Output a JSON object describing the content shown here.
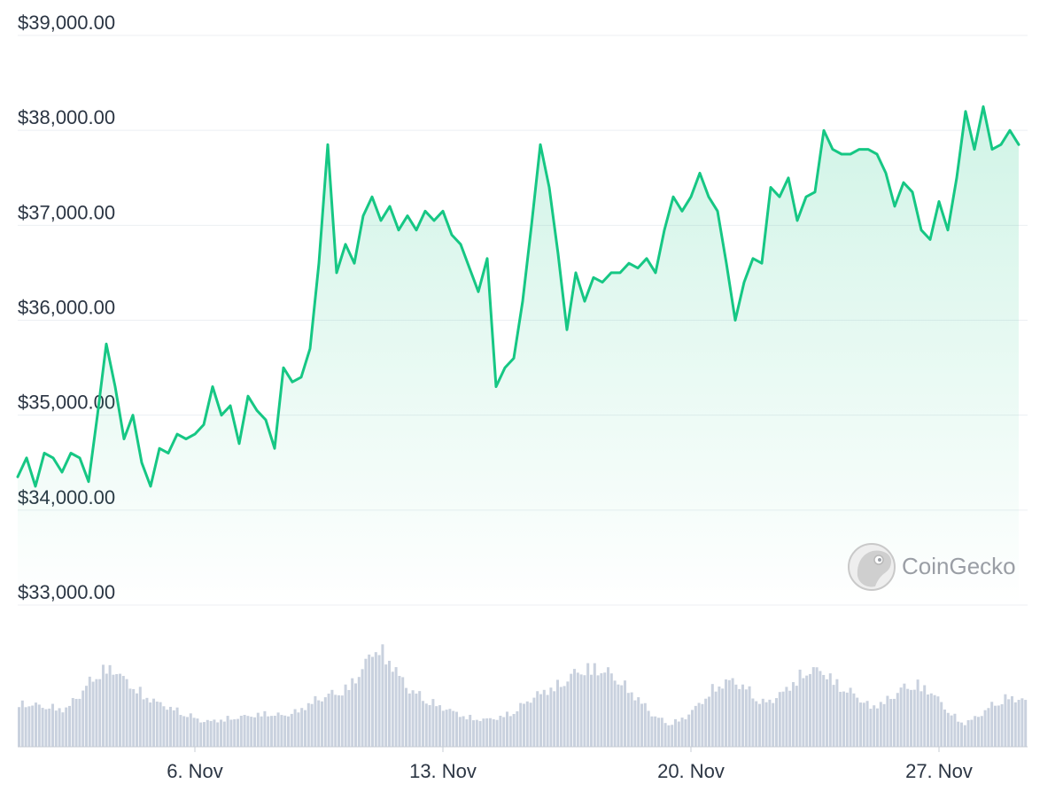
{
  "chart_data": {
    "type": "area",
    "title": "",
    "xlabel": "",
    "ylabel": "",
    "x_range": [
      "2023-11-01",
      "2023-11-29"
    ],
    "ylim": [
      33000,
      39000
    ],
    "y_ticks": [
      "$39,000.00",
      "$38,000.00",
      "$37,000.00",
      "$36,000.00",
      "$35,000.00",
      "$34,000.00",
      "$33,000.00"
    ],
    "y_tick_values": [
      39000,
      38000,
      37000,
      36000,
      35000,
      34000,
      33000
    ],
    "x_ticks": [
      "6. Nov",
      "13. Nov",
      "20. Nov",
      "27. Nov"
    ],
    "x_tick_dates": [
      "2023-11-06",
      "2023-11-13",
      "2023-11-20",
      "2023-11-27"
    ],
    "grid": true,
    "line_color": "#16c784",
    "fill_color": "#16c784",
    "volume_color": "#c9d1de",
    "price_series": {
      "name": "",
      "points": [
        [
          "2023-11-01T00:00",
          34350
        ],
        [
          "2023-11-01T06:00",
          34550
        ],
        [
          "2023-11-01T12:00",
          34250
        ],
        [
          "2023-11-01T18:00",
          34600
        ],
        [
          "2023-11-02T00:00",
          34550
        ],
        [
          "2023-11-02T06:00",
          34400
        ],
        [
          "2023-11-02T12:00",
          34600
        ],
        [
          "2023-11-02T18:00",
          34550
        ],
        [
          "2023-11-03T00:00",
          34300
        ],
        [
          "2023-11-03T06:00",
          35000
        ],
        [
          "2023-11-03T12:00",
          35750
        ],
        [
          "2023-11-03T18:00",
          35300
        ],
        [
          "2023-11-04T00:00",
          34750
        ],
        [
          "2023-11-04T06:00",
          35000
        ],
        [
          "2023-11-04T12:00",
          34500
        ],
        [
          "2023-11-04T18:00",
          34250
        ],
        [
          "2023-11-05T00:00",
          34650
        ],
        [
          "2023-11-05T06:00",
          34600
        ],
        [
          "2023-11-05T12:00",
          34800
        ],
        [
          "2023-11-05T18:00",
          34750
        ],
        [
          "2023-11-06T00:00",
          34800
        ],
        [
          "2023-11-06T06:00",
          34900
        ],
        [
          "2023-11-06T12:00",
          35300
        ],
        [
          "2023-11-06T18:00",
          35000
        ],
        [
          "2023-11-07T00:00",
          35100
        ],
        [
          "2023-11-07T06:00",
          34700
        ],
        [
          "2023-11-07T12:00",
          35200
        ],
        [
          "2023-11-07T18:00",
          35050
        ],
        [
          "2023-11-08T00:00",
          34950
        ],
        [
          "2023-11-08T06:00",
          34650
        ],
        [
          "2023-11-08T12:00",
          35500
        ],
        [
          "2023-11-08T18:00",
          35350
        ],
        [
          "2023-11-09T00:00",
          35400
        ],
        [
          "2023-11-09T06:00",
          35700
        ],
        [
          "2023-11-09T12:00",
          36600
        ],
        [
          "2023-11-09T18:00",
          37850
        ],
        [
          "2023-11-10T00:00",
          36500
        ],
        [
          "2023-11-10T06:00",
          36800
        ],
        [
          "2023-11-10T12:00",
          36600
        ],
        [
          "2023-11-10T18:00",
          37100
        ],
        [
          "2023-11-11T00:00",
          37300
        ],
        [
          "2023-11-11T06:00",
          37050
        ],
        [
          "2023-11-11T12:00",
          37200
        ],
        [
          "2023-11-11T18:00",
          36950
        ],
        [
          "2023-11-12T00:00",
          37100
        ],
        [
          "2023-11-12T06:00",
          36950
        ],
        [
          "2023-11-12T12:00",
          37150
        ],
        [
          "2023-11-12T18:00",
          37050
        ],
        [
          "2023-11-13T00:00",
          37150
        ],
        [
          "2023-11-13T06:00",
          36900
        ],
        [
          "2023-11-13T12:00",
          36800
        ],
        [
          "2023-11-13T18:00",
          36550
        ],
        [
          "2023-11-14T00:00",
          36300
        ],
        [
          "2023-11-14T06:00",
          36650
        ],
        [
          "2023-11-14T12:00",
          35300
        ],
        [
          "2023-11-14T18:00",
          35500
        ],
        [
          "2023-11-15T00:00",
          35600
        ],
        [
          "2023-11-15T06:00",
          36200
        ],
        [
          "2023-11-15T12:00",
          37000
        ],
        [
          "2023-11-15T18:00",
          37850
        ],
        [
          "2023-11-16T00:00",
          37400
        ],
        [
          "2023-11-16T06:00",
          36700
        ],
        [
          "2023-11-16T12:00",
          35900
        ],
        [
          "2023-11-16T18:00",
          36500
        ],
        [
          "2023-11-17T00:00",
          36200
        ],
        [
          "2023-11-17T06:00",
          36450
        ],
        [
          "2023-11-17T12:00",
          36400
        ],
        [
          "2023-11-17T18:00",
          36500
        ],
        [
          "2023-11-18T00:00",
          36500
        ],
        [
          "2023-11-18T06:00",
          36600
        ],
        [
          "2023-11-18T12:00",
          36550
        ],
        [
          "2023-11-18T18:00",
          36650
        ],
        [
          "2023-11-19T00:00",
          36500
        ],
        [
          "2023-11-19T06:00",
          36950
        ],
        [
          "2023-11-19T12:00",
          37300
        ],
        [
          "2023-11-19T18:00",
          37150
        ],
        [
          "2023-11-20T00:00",
          37300
        ],
        [
          "2023-11-20T06:00",
          37550
        ],
        [
          "2023-11-20T12:00",
          37300
        ],
        [
          "2023-11-20T18:00",
          37150
        ],
        [
          "2023-11-21T00:00",
          36600
        ],
        [
          "2023-11-21T06:00",
          36000
        ],
        [
          "2023-11-21T12:00",
          36400
        ],
        [
          "2023-11-21T18:00",
          36650
        ],
        [
          "2023-11-22T00:00",
          36600
        ],
        [
          "2023-11-22T06:00",
          37400
        ],
        [
          "2023-11-22T12:00",
          37300
        ],
        [
          "2023-11-22T18:00",
          37500
        ],
        [
          "2023-11-23T00:00",
          37050
        ],
        [
          "2023-11-23T06:00",
          37300
        ],
        [
          "2023-11-23T12:00",
          37350
        ],
        [
          "2023-11-23T18:00",
          38000
        ],
        [
          "2023-11-24T00:00",
          37800
        ],
        [
          "2023-11-24T06:00",
          37750
        ],
        [
          "2023-11-24T12:00",
          37750
        ],
        [
          "2023-11-24T18:00",
          37800
        ],
        [
          "2023-11-25T00:00",
          37800
        ],
        [
          "2023-11-25T06:00",
          37750
        ],
        [
          "2023-11-25T12:00",
          37550
        ],
        [
          "2023-11-25T18:00",
          37200
        ],
        [
          "2023-11-26T00:00",
          37450
        ],
        [
          "2023-11-26T06:00",
          37350
        ],
        [
          "2023-11-26T12:00",
          36950
        ],
        [
          "2023-11-26T18:00",
          36850
        ],
        [
          "2023-11-27T00:00",
          37250
        ],
        [
          "2023-11-27T06:00",
          36950
        ],
        [
          "2023-11-27T12:00",
          37500
        ],
        [
          "2023-11-27T18:00",
          38200
        ],
        [
          "2023-11-28T00:00",
          37800
        ],
        [
          "2023-11-28T06:00",
          38250
        ],
        [
          "2023-11-28T12:00",
          37800
        ],
        [
          "2023-11-28T18:00",
          37850
        ],
        [
          "2023-11-29T00:00",
          38000
        ],
        [
          "2023-11-29T06:00",
          37850
        ]
      ]
    },
    "volume_series": {
      "name": "",
      "relative_values": [
        0.42,
        0.4,
        0.38,
        0.36,
        0.52,
        0.7,
        0.76,
        0.62,
        0.5,
        0.42,
        0.36,
        0.3,
        0.24,
        0.26,
        0.28,
        0.3,
        0.32,
        0.3,
        0.34,
        0.44,
        0.5,
        0.54,
        0.7,
        0.96,
        0.82,
        0.58,
        0.48,
        0.4,
        0.34,
        0.28,
        0.26,
        0.28,
        0.34,
        0.46,
        0.54,
        0.6,
        0.72,
        0.76,
        0.72,
        0.6,
        0.46,
        0.3,
        0.22,
        0.28,
        0.42,
        0.58,
        0.64,
        0.56,
        0.42,
        0.48,
        0.62,
        0.74,
        0.72,
        0.58,
        0.5,
        0.38,
        0.44,
        0.56,
        0.6,
        0.52,
        0.34,
        0.22,
        0.3,
        0.42,
        0.48,
        0.44
      ]
    },
    "watermark": "CoinGecko"
  }
}
